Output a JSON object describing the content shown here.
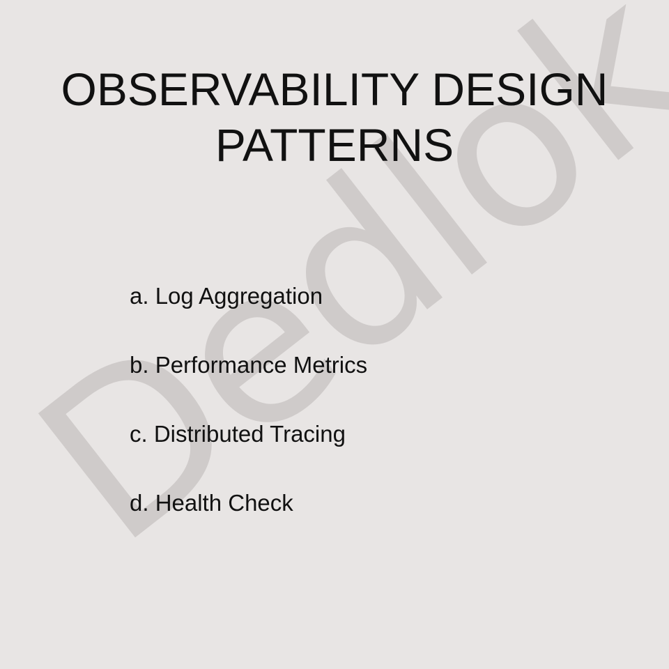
{
  "slide": {
    "title_lines": [
      "OBSERVABILITY DESIGN",
      "PATTERNS"
    ],
    "items": [
      "a. Log Aggregation",
      "b. Performance Metrics",
      "c. Distributed Tracing",
      "d. Health Check"
    ],
    "watermark": "Dedlok"
  },
  "colors": {
    "background": "#e8e5e4",
    "text": "#111111",
    "watermark": "#cfcbca"
  }
}
